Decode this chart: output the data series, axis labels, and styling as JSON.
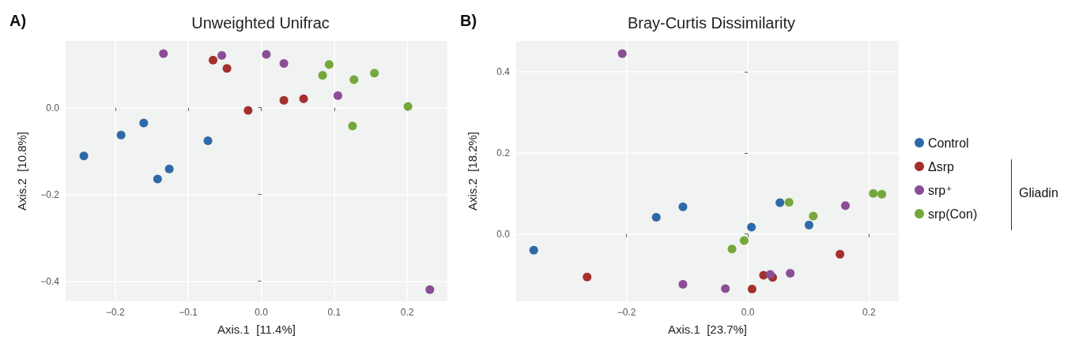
{
  "chart_data": [
    {
      "type": "scatter",
      "title": "Unweighted Unifrac",
      "xlabel": "Axis.1  [11.4%]",
      "ylabel": "Axis.2  [10.8%]",
      "annotations": [
        "A)"
      ],
      "xlim": [
        -0.268,
        0.255
      ],
      "ylim": [
        -0.446,
        0.154
      ],
      "xticks": [
        {
          "value": -0.2,
          "label": "−0.2"
        },
        {
          "value": -0.1,
          "label": "−0.1"
        },
        {
          "value": 0,
          "label": "0.0"
        },
        {
          "value": 0.1,
          "label": "0.1"
        },
        {
          "value": 0.2,
          "label": "0.2"
        }
      ],
      "yticks": [
        {
          "value": -0.4,
          "label": "−0.4"
        },
        {
          "value": -0.2,
          "label": "−0.2"
        },
        {
          "value": 0,
          "label": "0.0"
        }
      ],
      "grid": true,
      "legend": false,
      "marker": "circle",
      "series": [
        {
          "color": "#2e6aa8",
          "x": [
            -0.243,
            -0.192,
            -0.161,
            -0.142,
            -0.126,
            -0.073
          ],
          "values": [
            -0.111,
            -0.063,
            -0.035,
            -0.164,
            -0.141,
            -0.076
          ]
        },
        {
          "color": "#a3302d",
          "x": [
            -0.066,
            -0.047,
            -0.018,
            0.031,
            0.058
          ],
          "values": [
            0.11,
            0.091,
            -0.006,
            0.017,
            0.021
          ]
        },
        {
          "color": "#8a4d96",
          "x": [
            -0.134,
            -0.054,
            0.007,
            0.031,
            0.105,
            0.231
          ],
          "values": [
            0.125,
            0.121,
            0.123,
            0.102,
            0.028,
            -0.419
          ]
        },
        {
          "color": "#74a83a",
          "x": [
            0.084,
            0.093,
            0.127,
            0.155,
            0.125,
            0.201
          ],
          "values": [
            0.075,
            0.1,
            0.065,
            0.08,
            -0.042,
            0.003
          ]
        }
      ]
    },
    {
      "type": "scatter",
      "title": "Bray-Curtis Dissimilarity",
      "xlabel": "Axis.1  [23.7%]",
      "ylabel": "Axis.2  [18.2%]",
      "annotations": [
        "B)",
        "Gliadin"
      ],
      "xlim": [
        -0.382,
        0.249
      ],
      "ylim": [
        -0.166,
        0.476
      ],
      "xticks": [
        {
          "value": -0.2,
          "label": "−0.2"
        },
        {
          "value": 0,
          "label": "0.0"
        },
        {
          "value": 0.2,
          "label": "0.2"
        }
      ],
      "yticks": [
        {
          "value": 0,
          "label": "0.0"
        },
        0.2,
        0.4
      ],
      "grid": true,
      "legend": "right",
      "marker": "circle",
      "series": [
        {
          "name": "Control",
          "color": "#2e6aa8",
          "x": [
            -0.353,
            -0.151,
            -0.107,
            0.006,
            0.053,
            0.101
          ],
          "values": [
            -0.04,
            0.041,
            0.067,
            0.017,
            0.077,
            0.022
          ]
        },
        {
          "name": "Δsrp",
          "color": "#a3302d",
          "x": [
            -0.265,
            0.007,
            0.026,
            0.041,
            0.152
          ],
          "values": [
            -0.106,
            -0.136,
            -0.102,
            -0.107,
            -0.05
          ]
        },
        {
          "name": "srp⁺",
          "color": "#8a4d96",
          "x": [
            -0.207,
            -0.107,
            -0.037,
            0.037,
            0.07,
            0.161
          ],
          "values": [
            0.445,
            -0.124,
            -0.135,
            -0.1,
            -0.097,
            0.07
          ]
        },
        {
          "name": "srp(Con)",
          "color": "#74a83a",
          "x": [
            -0.026,
            -0.006,
            0.068,
            0.108,
            0.207,
            0.221
          ],
          "values": [
            -0.037,
            -0.016,
            0.078,
            0.044,
            0.1,
            0.098
          ]
        }
      ]
    }
  ]
}
